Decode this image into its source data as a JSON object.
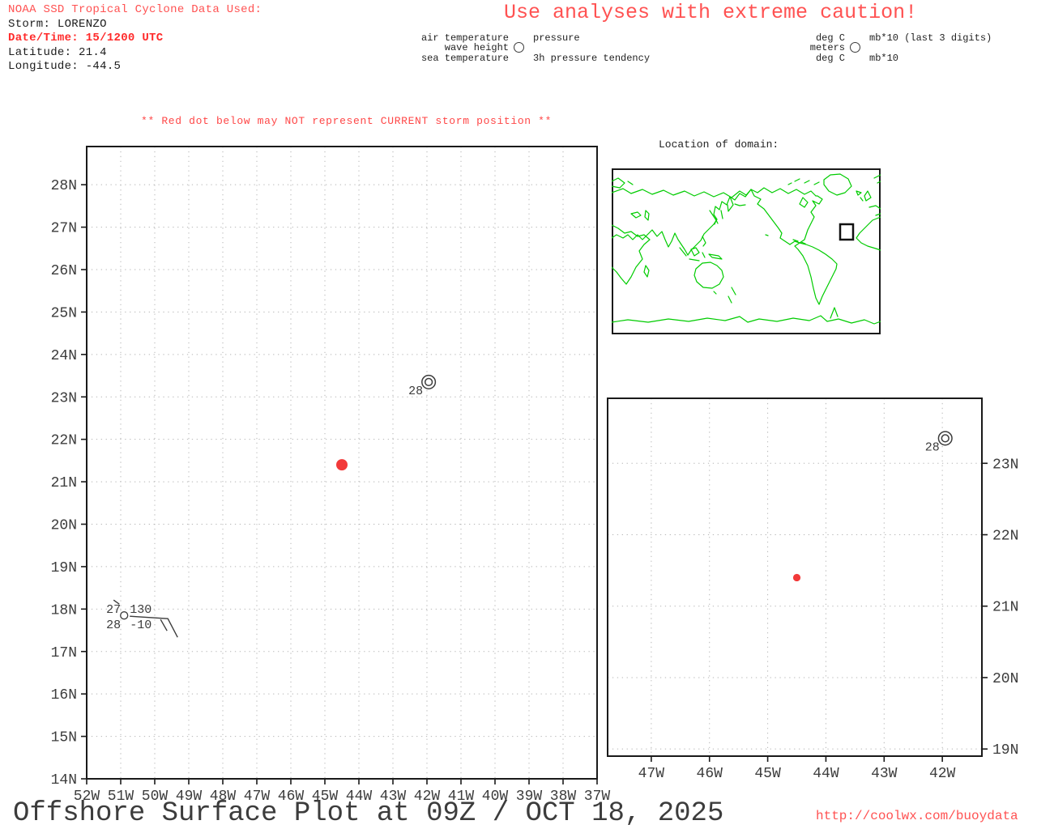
{
  "header": {
    "source": "NOAA SSD Tropical Cyclone Data Used:",
    "storm": "Storm: LORENZO",
    "datetime": "Date/Time: 15/1200 UTC",
    "latitude": "Latitude: 21.4",
    "longitude": "Longitude: -44.5",
    "caution": "Use analyses with extreme caution!"
  },
  "legend": {
    "vars": {
      "air": "air temperature",
      "wave": "wave height",
      "sea": "sea temperature",
      "pressure": "pressure",
      "tendency": "3h pressure tendency"
    },
    "units": {
      "air": "deg C",
      "wave": "meters",
      "sea": "deg C",
      "pressure": "mb*10 (last 3 digits)",
      "tendency": "mb*10"
    }
  },
  "storm_warning": "** Red dot below may NOT represent CURRENT storm position **",
  "inset_map": {
    "title": "Location of domain:"
  },
  "footer": {
    "title": "Offshore Surface Plot at 09Z / OCT 18, 2025",
    "url": "http://coolwx.com/buoydata"
  },
  "colors": {
    "red_text": "#ff5252",
    "storm_dot": "#f23939",
    "map_green": "#00cc00",
    "grid": "#b5b5b5",
    "axis_text": "#3c3c3c",
    "frame": "#1a1a1a"
  },
  "chart_data": [
    {
      "type": "scatter",
      "name": "main-offshore-surface-plot",
      "xlim": [
        -52,
        -37
      ],
      "ylim": [
        14,
        28.9
      ],
      "grid": "dotted",
      "legend_position": "none",
      "xticks": {
        "values": [
          -52,
          -51,
          -50,
          -49,
          -48,
          -47,
          -46,
          -45,
          -44,
          -43,
          -42,
          -41,
          -40,
          -39,
          -38,
          -37
        ],
        "labels": [
          "52W",
          "51W",
          "50W",
          "49W",
          "48W",
          "47W",
          "46W",
          "45W",
          "44W",
          "43W",
          "42W",
          "41W",
          "40W",
          "39W",
          "38W",
          "37W"
        ]
      },
      "yticks": {
        "values": [
          14,
          15,
          16,
          17,
          18,
          19,
          20,
          21,
          22,
          23,
          24,
          25,
          26,
          27,
          28
        ],
        "labels": [
          "14N",
          "15N",
          "16N",
          "17N",
          "18N",
          "19N",
          "20N",
          "21N",
          "22N",
          "23N",
          "24N",
          "25N",
          "26N",
          "27N",
          "28N"
        ]
      },
      "storm_position": {
        "lat": 21.4,
        "lon": -44.5
      },
      "observations": [
        {
          "lon": -41.95,
          "lat": 23.35,
          "symbol": "buoy-double-circle",
          "sea_temperature": "28"
        },
        {
          "lon": -50.9,
          "lat": 17.85,
          "symbol": "station-circle",
          "air_temperature": "27",
          "sea_temperature": "28",
          "pressure": "130",
          "pressure_tendency": "-10",
          "wind_barb": true
        }
      ]
    },
    {
      "type": "scatter",
      "name": "zoomed-domain-plot",
      "xlim": [
        -47.75,
        -41.32
      ],
      "ylim": [
        18.9,
        23.91
      ],
      "grid": "dotted",
      "legend_position": "none",
      "xticks": {
        "values": [
          -47,
          -46,
          -45,
          -44,
          -43,
          -42
        ],
        "labels": [
          "47W",
          "46W",
          "45W",
          "44W",
          "43W",
          "42W"
        ]
      },
      "yticks": {
        "values": [
          19,
          20,
          21,
          22,
          23
        ],
        "labels": [
          "19N",
          "20N",
          "21N",
          "22N",
          "23N"
        ]
      },
      "storm_position": {
        "lat": 21.4,
        "lon": -44.5
      },
      "observations": [
        {
          "lon": -41.95,
          "lat": 23.35,
          "symbol": "buoy-double-circle",
          "sea_temperature": "28"
        }
      ]
    }
  ]
}
